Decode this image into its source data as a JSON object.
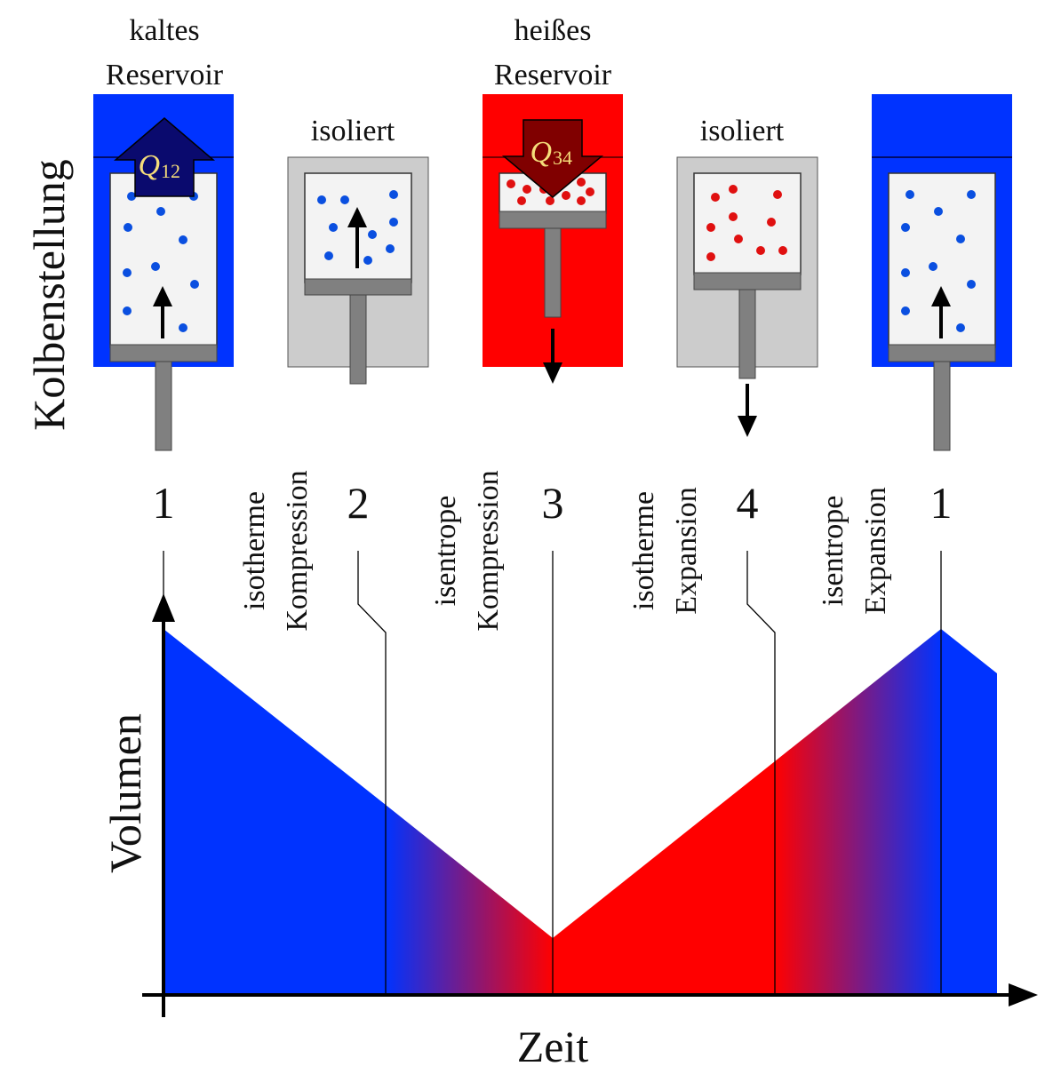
{
  "labels": {
    "cold_reservoir_line1": "kaltes",
    "cold_reservoir_line2": "Reservoir",
    "hot_reservoir_line1": "heißes",
    "hot_reservoir_line2": "Reservoir",
    "insulated_left": "isoliert",
    "insulated_right": "isoliert",
    "y_axis_top": "Kolbenstellung",
    "y_axis_bottom": "Volumen",
    "x_axis": "Zeit"
  },
  "heat": {
    "q12_letter": "Q",
    "q12_sub": "12",
    "q34_letter": "Q",
    "q34_sub": "34"
  },
  "states": [
    "1",
    "2",
    "3",
    "4",
    "1"
  ],
  "processes": [
    {
      "line1": "isotherme",
      "line2": "Kompression"
    },
    {
      "line1": "isentrope",
      "line2": "Kompression"
    },
    {
      "line1": "isotherme",
      "line2": "Expansion"
    },
    {
      "line1": "isentrope",
      "line2": "Expansion"
    }
  ],
  "colors": {
    "cold": "#0033ff",
    "hot": "#ff0000",
    "insulated": "#cccccc",
    "piston": "#808080",
    "q12_arrow": "#0a0a6e",
    "q34_arrow": "#800000",
    "q_text": "#f5dd7a"
  }
}
